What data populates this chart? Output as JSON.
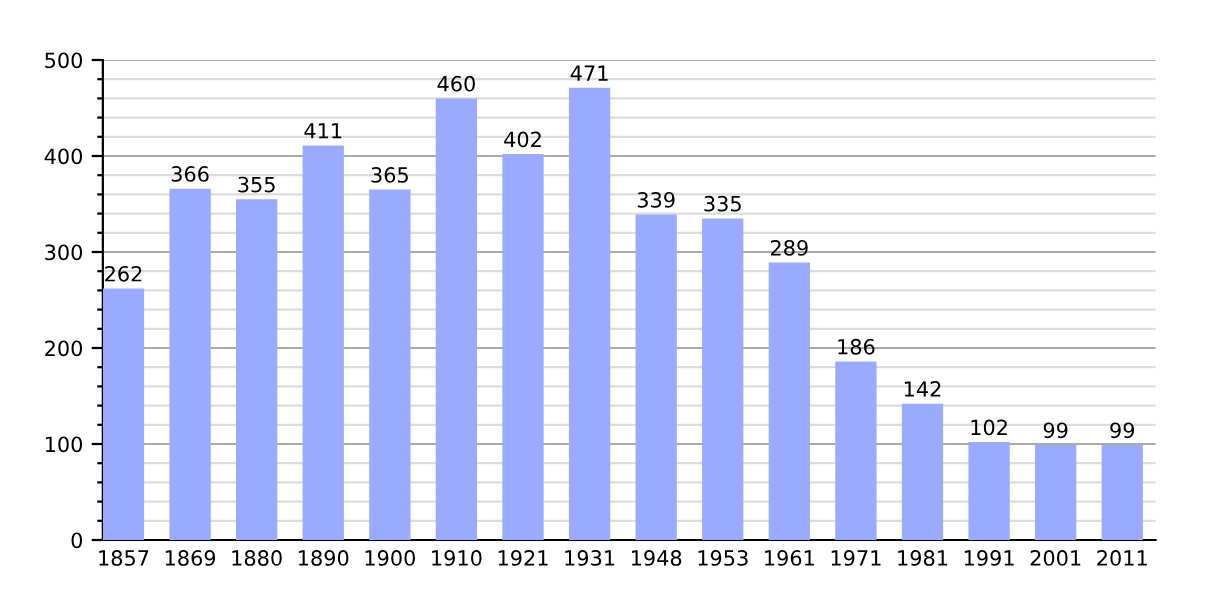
{
  "chart_data": {
    "type": "bar",
    "categories": [
      "1857",
      "1869",
      "1880",
      "1890",
      "1900",
      "1910",
      "1921",
      "1931",
      "1948",
      "1953",
      "1961",
      "1971",
      "1981",
      "1991",
      "2001",
      "2011"
    ],
    "values": [
      262,
      366,
      355,
      411,
      365,
      460,
      402,
      471,
      339,
      335,
      289,
      186,
      142,
      102,
      99,
      99
    ],
    "color": "#99aaff",
    "data_labels": true,
    "grid": "y",
    "ylim": [
      0,
      500
    ],
    "yticks": [
      0,
      {
        "value": 20,
        "label": null
      },
      {
        "value": 40,
        "label": null
      },
      {
        "value": 60,
        "label": null
      },
      {
        "value": 80,
        "label": null
      },
      100,
      {
        "value": 120,
        "label": null
      },
      {
        "value": 140,
        "label": null
      },
      {
        "value": 160,
        "label": null
      },
      {
        "value": 180,
        "label": null
      },
      200,
      {
        "value": 220,
        "label": null
      },
      {
        "value": 240,
        "label": null
      },
      {
        "value": 260,
        "label": null
      },
      {
        "value": 280,
        "label": null
      },
      300,
      {
        "value": 320,
        "label": null
      },
      {
        "value": 340,
        "label": null
      },
      {
        "value": 360,
        "label": null
      },
      {
        "value": 380,
        "label": null
      },
      400,
      {
        "value": 420,
        "label": null
      },
      {
        "value": 440,
        "label": null
      },
      {
        "value": 460,
        "label": null
      },
      {
        "value": 480,
        "label": null
      },
      500
    ]
  }
}
